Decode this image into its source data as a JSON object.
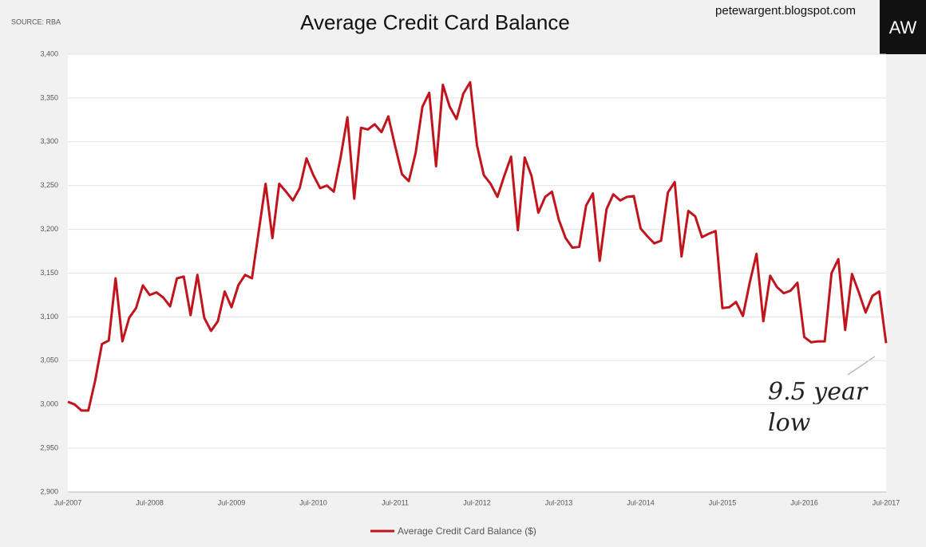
{
  "chart_data": {
    "type": "line",
    "title": "Average Credit Card Balance",
    "source": "SOURCE: RBA",
    "watermark": "petewargent.blogspot.com",
    "logo": "AW",
    "annotation": [
      "9.5 year",
      "low"
    ],
    "grid": true,
    "legend": "bottom",
    "categories": [
      "Jul-2007",
      null,
      null,
      null,
      null,
      null,
      null,
      null,
      null,
      null,
      null,
      null,
      "Jul-2008",
      null,
      null,
      null,
      null,
      null,
      null,
      null,
      null,
      null,
      null,
      null,
      "Jul-2009",
      null,
      null,
      null,
      null,
      null,
      null,
      null,
      null,
      null,
      null,
      null,
      "Jul-2010",
      null,
      null,
      null,
      null,
      null,
      null,
      null,
      null,
      null,
      null,
      null,
      "Jul-2011",
      null,
      null,
      null,
      null,
      null,
      null,
      null,
      null,
      null,
      null,
      null,
      "Jul-2012",
      null,
      null,
      null,
      null,
      null,
      null,
      null,
      null,
      null,
      null,
      null,
      "Jul-2013",
      null,
      null,
      null,
      null,
      null,
      null,
      null,
      null,
      null,
      null,
      null,
      "Jul-2014",
      null,
      null,
      null,
      null,
      null,
      null,
      null,
      null,
      null,
      null,
      null,
      "Jul-2015",
      null,
      null,
      null,
      null,
      null,
      null,
      null,
      null,
      null,
      null,
      null,
      "Jul-2016",
      null,
      null,
      null,
      null,
      null,
      null,
      null,
      null,
      null,
      null,
      null,
      "Jul-2017"
    ],
    "series": [
      {
        "name": "Average Credit Card Balance ($)",
        "color": "#c0151d",
        "values": [
          3003,
          3000,
          2993,
          2993,
          3027,
          3069,
          3073,
          3144,
          3072,
          3099,
          3110,
          3136,
          3125,
          3128,
          3122,
          3112,
          3144,
          3146,
          3102,
          3148,
          3099,
          3084,
          3095,
          3129,
          3111,
          3136,
          3148,
          3144,
          3198,
          3252,
          3190,
          3252,
          3243,
          3233,
          3247,
          3281,
          3262,
          3247,
          3250,
          3243,
          3282,
          3328,
          3235,
          3316,
          3314,
          3320,
          3311,
          3329,
          3295,
          3263,
          3255,
          3287,
          3340,
          3356,
          3272,
          3365,
          3340,
          3326,
          3355,
          3368,
          3296,
          3262,
          3252,
          3237,
          3261,
          3283,
          3199,
          3282,
          3261,
          3219,
          3237,
          3243,
          3211,
          3190,
          3179,
          3180,
          3227,
          3241,
          3164,
          3223,
          3240,
          3233,
          3237,
          3238,
          3201,
          3192,
          3184,
          3187,
          3242,
          3254,
          3169,
          3221,
          3215,
          3191,
          3195,
          3198,
          3110,
          3111,
          3117,
          3101,
          3139,
          3172,
          3095,
          3147,
          3134,
          3127,
          3130,
          3139,
          3077,
          3071,
          3072,
          3072,
          3150,
          3166,
          3085,
          3149,
          3128,
          3105,
          3124,
          3129,
          3070
        ]
      }
    ],
    "ylim": [
      2900,
      3400
    ],
    "yticks": [
      {
        "value": 2900,
        "label": "2,900"
      },
      {
        "value": 2950,
        "label": "2,950"
      },
      {
        "value": 3000,
        "label": "3,000"
      },
      {
        "value": 3050,
        "label": "3,050"
      },
      {
        "value": 3100,
        "label": "3,100"
      },
      {
        "value": 3150,
        "label": "3,150"
      },
      {
        "value": 3200,
        "label": "3,200"
      },
      {
        "value": 3250,
        "label": "3,250"
      },
      {
        "value": 3300,
        "label": "3,300"
      },
      {
        "value": 3350,
        "label": "3,350"
      },
      {
        "value": 3400,
        "label": "3,400"
      }
    ]
  }
}
